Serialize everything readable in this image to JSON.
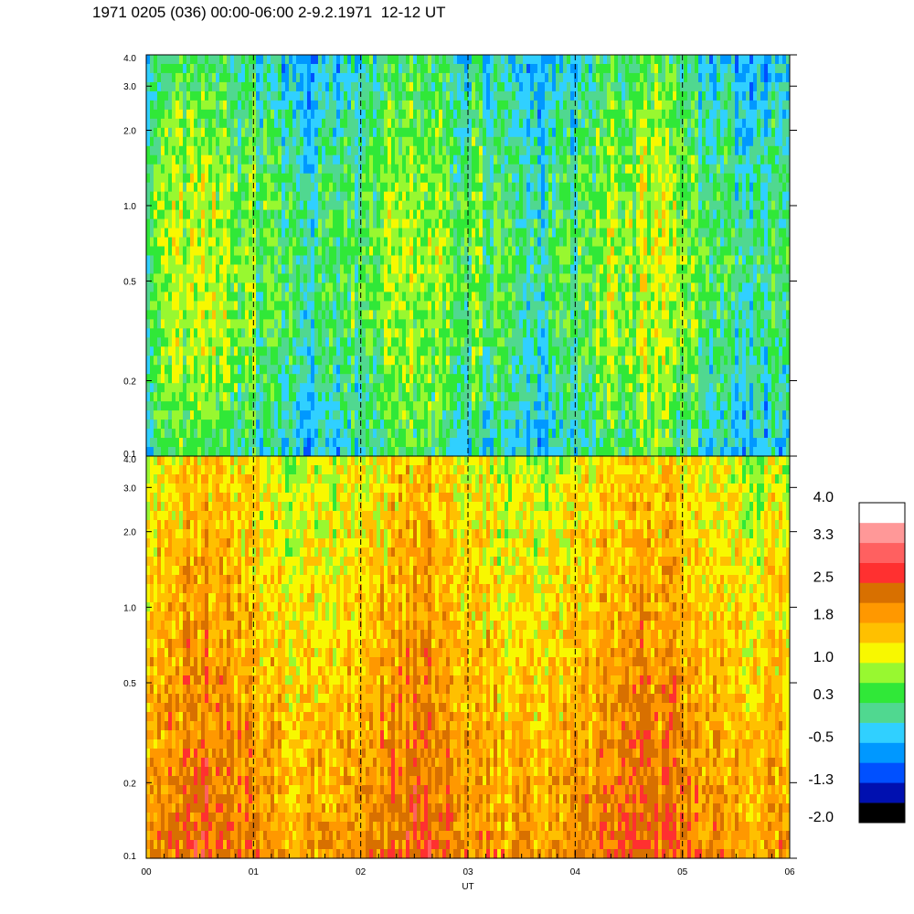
{
  "title": "1971 0205 (036) 00:00-06:00 2-9.2.1971  12-12 UT",
  "chart_data": {
    "type": "heatmap",
    "xlabel": "UT",
    "x_ticks": [
      "00",
      "01",
      "02",
      "03",
      "04",
      "05",
      "06"
    ],
    "xlim": [
      0,
      6
    ],
    "x_unit": "hours UT",
    "dashed_hour_lines": [
      1,
      2,
      3,
      4,
      5
    ],
    "panels": [
      {
        "name": "upper",
        "ylim": [
          0.1,
          4.0
        ],
        "yscale": "log",
        "y_ticks": [
          {
            "value": 0.1,
            "label": "0.1"
          },
          {
            "value": 0.2,
            "label": "0.2"
          },
          {
            "value": 0.5,
            "label": "0.5"
          },
          {
            "value": 1.0,
            "label": "1.0"
          },
          {
            "value": 2.0,
            "label": "2.0"
          },
          {
            "value": 3.0,
            "label": "3.0"
          },
          {
            "value": 4.0,
            "label": "4.0"
          }
        ],
        "level_range": [
          -1.2,
          1.3
        ],
        "dominant_colors": [
          "green",
          "cyan",
          "blue",
          "yellow"
        ]
      },
      {
        "name": "lower",
        "ylim": [
          0.1,
          4.0
        ],
        "yscale": "log",
        "y_ticks": [
          {
            "value": 0.1,
            "label": "0.1"
          },
          {
            "value": 0.2,
            "label": "0.2"
          },
          {
            "value": 0.5,
            "label": "0.5"
          },
          {
            "value": 1.0,
            "label": "1.0"
          },
          {
            "value": 2.0,
            "label": "2.0"
          },
          {
            "value": 3.0,
            "label": "3.0"
          },
          {
            "value": 4.0,
            "label": "4.0"
          }
        ],
        "level_range": [
          0.3,
          2.6
        ],
        "dominant_colors": [
          "orange",
          "yellow",
          "green",
          "red"
        ]
      }
    ],
    "colorbar": {
      "range": [
        -2.0,
        4.0
      ],
      "tick_labels": [
        "4.0",
        "3.3",
        "2.5",
        "1.8",
        "1.0",
        "0.3",
        "-0.5",
        "-1.3",
        "-2.0"
      ],
      "tick_values": [
        4.0,
        3.3,
        2.5,
        1.8,
        1.0,
        0.3,
        -0.5,
        -1.3,
        -2.0
      ],
      "colors_bottom_to_top": [
        "#000000",
        "#0010b0",
        "#0050ff",
        "#0098ff",
        "#30d0ff",
        "#50d890",
        "#30e838",
        "#98f830",
        "#f8f800",
        "#ffc000",
        "#ff9800",
        "#d87000",
        "#ff3030",
        "#ff6060",
        "#ff9898",
        "#ffffff"
      ]
    }
  }
}
